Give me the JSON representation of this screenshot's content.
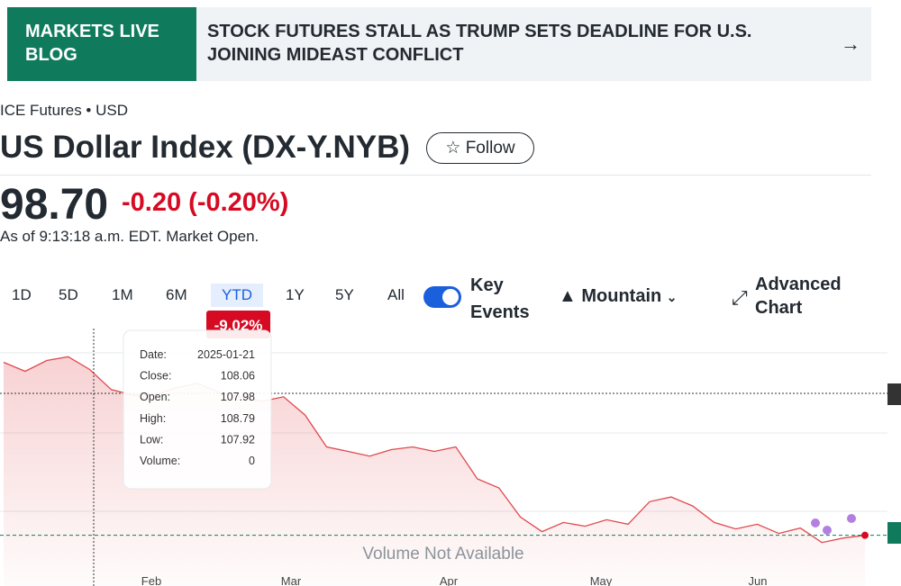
{
  "banner": {
    "label": "MARKETS LIVE BLOG",
    "headline": "STOCK FUTURES STALL AS TRUMP SETS DEADLINE FOR U.S. JOINING MIDEAST CONFLICT"
  },
  "quote": {
    "exchange": "ICE Futures • USD",
    "name": "US Dollar Index (DX-Y.NYB)",
    "follow": "Follow",
    "price": "98.70",
    "change": "-0.20 (-0.20%)",
    "as_of": "As of 9:13:18 a.m. EDT. Market Open."
  },
  "toolbar": {
    "ranges": [
      "1D",
      "5D",
      "1M",
      "6M",
      "YTD",
      "1Y",
      "5Y",
      "All"
    ],
    "active_range": "YTD",
    "key_events": "Key Events",
    "chart_type": "Mountain",
    "advanced": "Advanced Chart"
  },
  "chart_data": {
    "type": "area",
    "badge": "-9.02%",
    "tooltip": [
      [
        "Date:",
        "2025-01-21"
      ],
      [
        "Close:",
        "108.06"
      ],
      [
        "Open:",
        "107.98"
      ],
      [
        "High:",
        "108.79"
      ],
      [
        "Low:",
        "107.92"
      ],
      [
        "Volume:",
        "0"
      ]
    ],
    "values": [
      110.17,
      109.57,
      110.29,
      110.54,
      109.69,
      108.36,
      108.0,
      108.0,
      108.48,
      108.78,
      108.18,
      107.88,
      107.58,
      107.88,
      106.67,
      104.56,
      104.26,
      103.95,
      104.38,
      104.56,
      104.26,
      104.56,
      102.44,
      101.84,
      99.91,
      98.94,
      99.55,
      99.3,
      99.73,
      99.43,
      100.93,
      101.24,
      100.64,
      99.55,
      99.12,
      99.43,
      98.82,
      99.18,
      98.22,
      98.52,
      98.7
    ],
    "ylim": [
      95.2,
      112
    ],
    "color": "#e0494e",
    "months": [
      "Feb",
      "Mar",
      "Apr",
      "May",
      "Jun"
    ],
    "note": "Volume Not Available"
  }
}
